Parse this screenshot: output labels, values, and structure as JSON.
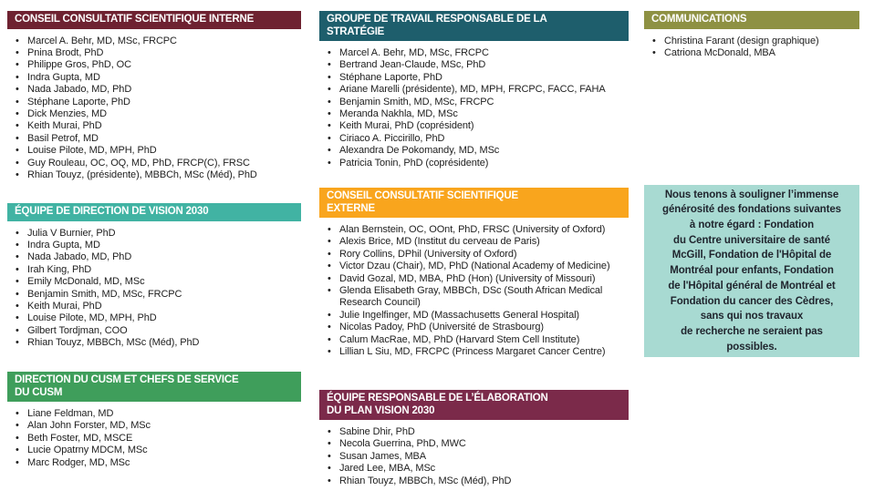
{
  "page": {
    "background": "#ffffff",
    "text_color": "#212121"
  },
  "sections": [
    {
      "id": "conseil-interne",
      "title": "CONSEIL CONSULTATIF SCIENTIFIQUE INTERNE",
      "color": "#6e2231",
      "members": [
        "Marcel A. Behr, MD, MSc, FRCPC",
        "Pnina Brodt, PhD",
        "Philippe Gros, PhD, OC",
        "Indra Gupta, MD",
        "Nada Jabado, MD, PhD",
        "Stéphane Laporte, PhD",
        "Dick Menzies, MD",
        "Keith Murai, PhD",
        "Basil Petrof, MD",
        "Louise Pilote, MD, MPH, PhD",
        "Guy Rouleau, OC, OQ, MD, PhD, FRCP(C), FRSC",
        "Rhian Touyz, (présidente), MBBCh, MSc (Méd), PhD"
      ]
    },
    {
      "id": "equipe-direction-vision-2030",
      "title": "ÉQUIPE DE DIRECTION DE VISION 2030",
      "color": "#41b3a3",
      "members": [
        "Julia V Burnier, PhD",
        "Indra Gupta, MD",
        "Nada Jabado, MD, PhD",
        "Irah King, PhD",
        "Emily McDonald, MD, MSc",
        "Benjamin Smith, MD, MSc, FRCPC",
        "Keith Murai, PhD",
        "Louise Pilote, MD, MPH, PhD",
        "Gilbert Tordjman, COO",
        "Rhian Touyz, MBBCh, MSc (Méd), PhD"
      ]
    },
    {
      "id": "direction-cusm",
      "title": "DIRECTION DU CUSM ET CHEFS DE SERVICE\nDU CUSM",
      "color": "#3f9e5b",
      "members": [
        "Liane Feldman, MD",
        "Alan John Forster, MD, MSc",
        "Beth Foster, MD, MSCE",
        "Lucie Opatrny MDCM, MSc",
        "Marc Rodger, MD, MSc"
      ]
    },
    {
      "id": "groupe-travail-strategie",
      "title": "GROUPE DE TRAVAIL RESPONSABLE DE LA\nSTRATÉGIE",
      "color": "#1e5e6c",
      "members": [
        "Marcel A. Behr, MD, MSc, FRCPC",
        "Bertrand Jean-Claude, MSc, PhD",
        "Stéphane Laporte, PhD",
        "Ariane Marelli (présidente), MD, MPH, FRCPC, FACC, FAHA",
        "Benjamin Smith, MD, MSc, FRCPC",
        "Meranda Nakhla, MD, MSc",
        "Keith Murai, PhD (coprésident)",
        "Ciriaco A. Piccirillo, PhD",
        "Alexandra De Pokomandy, MD, MSc",
        "Patricia Tonin, PhD (coprésidente)"
      ]
    },
    {
      "id": "conseil-externe",
      "title": "CONSEIL CONSULTATIF SCIENTIFIQUE\nEXTERNE",
      "color": "#f9a51d",
      "members": [
        "Alan Bernstein, OC, OOnt, PhD, FRSC (University of Oxford)",
        "Alexis Brice, MD (Institut du cerveau de Paris)",
        "Rory Collins, DPhil (University of Oxford)",
        "Victor Dzau (Chair), MD, PhD (National Academy of Medicine)",
        "David Gozal, MD, MBA, PhD (Hon) (University of Missouri)",
        "Glenda Elisabeth Gray, MBBCh, DSc (South African Medical Research Council)",
        "Julie Ingelfinger, MD (Massachusetts General Hospital)",
        "Nicolas Padoy, PhD (Université de Strasbourg)",
        "Calum MacRae, MD, PhD (Harvard Stem Cell Institute)",
        "Lillian L Siu, MD, FRCPC (Princess Margaret Cancer Centre)"
      ]
    },
    {
      "id": "equipe-plan-vision-2030",
      "title": "ÉQUIPE RESPONSABLE DE L’ÉLABORATION\nDU PLAN VISION 2030",
      "color": "#7b2a4a",
      "members": [
        "Sabine Dhir, PhD",
        "Necola Guerrina, PhD, MWC",
        "Susan James, MBA",
        "Jared Lee, MBA, MSc",
        "Rhian Touyz, MBBCh, MSc (Méd), PhD"
      ]
    },
    {
      "id": "communications",
      "title": "COMMUNICATIONS",
      "color": "#8e9143",
      "members": [
        "Christina Farant (design graphique)",
        "Catriona McDonald, MBA"
      ]
    }
  ],
  "acknowledgement": {
    "background": "#a8dad2",
    "text": "Nous tenons à souligner l’immense\ngénérosité des fondations suivantes\nà notre égard : Fondation\ndu Centre universitaire de santé\nMcGill, Fondation de l'Hôpital de\nMontréal pour enfants, Fondation\nde l'Hôpital général de Montréal et\nFondation du cancer des Cèdres,\nsans qui nos travaux\nde recherche ne seraient pas\npossibles."
  }
}
